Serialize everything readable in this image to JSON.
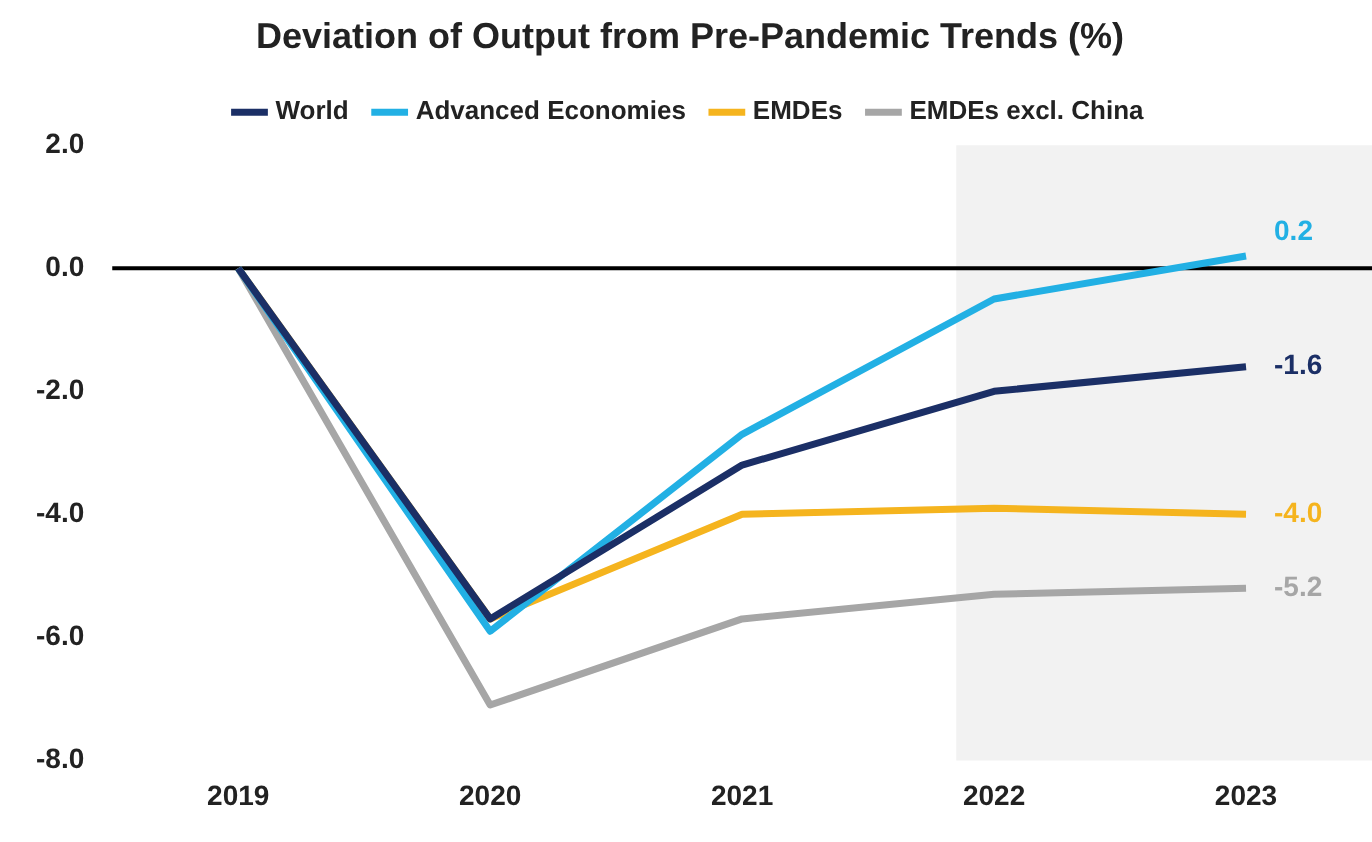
{
  "chart_data": {
    "type": "line",
    "title": "Deviation of Output from Pre-Pandemic Trends (%)",
    "categories": [
      "2019",
      "2020",
      "2021",
      "2022",
      "2023"
    ],
    "series": [
      {
        "name": "World",
        "color": "#1b2f66",
        "values": [
          0,
          -5.7,
          -3.2,
          -2.0,
          -1.6
        ],
        "value_labels": [
          null,
          null,
          null,
          null,
          "-1.6"
        ]
      },
      {
        "name": "Advanced Economies",
        "color": "#22b0e4",
        "values": [
          0,
          -5.9,
          -2.7,
          -0.5,
          0.2
        ],
        "value_labels": [
          null,
          null,
          null,
          null,
          "0.2"
        ]
      },
      {
        "name": "EMDEs",
        "color": "#f5b41e",
        "values": [
          0,
          -5.7,
          -4.0,
          -3.9,
          -4.0
        ],
        "value_labels": [
          null,
          null,
          null,
          null,
          "-4.0"
        ]
      },
      {
        "name": "EMDEs excl. China",
        "color": "#a6a6a6",
        "values": [
          0,
          -7.1,
          -5.7,
          -5.3,
          -5.2
        ],
        "value_labels": [
          null,
          null,
          null,
          null,
          "-5.2"
        ]
      }
    ],
    "ylim": [
      -8,
      2
    ],
    "yticks": [
      {
        "value": -8,
        "label": "-8.0"
      },
      {
        "value": -6,
        "label": "-6.0"
      },
      {
        "value": -4,
        "label": "-4.0"
      },
      {
        "value": -2,
        "label": "-2.0"
      },
      {
        "value": 0,
        "label": "0.0"
      },
      {
        "value": 2,
        "label": "2.0"
      }
    ],
    "ref_lines": [
      {
        "axis": "y",
        "value": 0,
        "color": "#000000"
      }
    ],
    "bands": [
      {
        "axis": "x",
        "from": "2022",
        "to": "2023",
        "color": "#f2f2f2"
      }
    ],
    "grid": false,
    "legend": "top",
    "marker": "none",
    "line_style": "solid"
  }
}
